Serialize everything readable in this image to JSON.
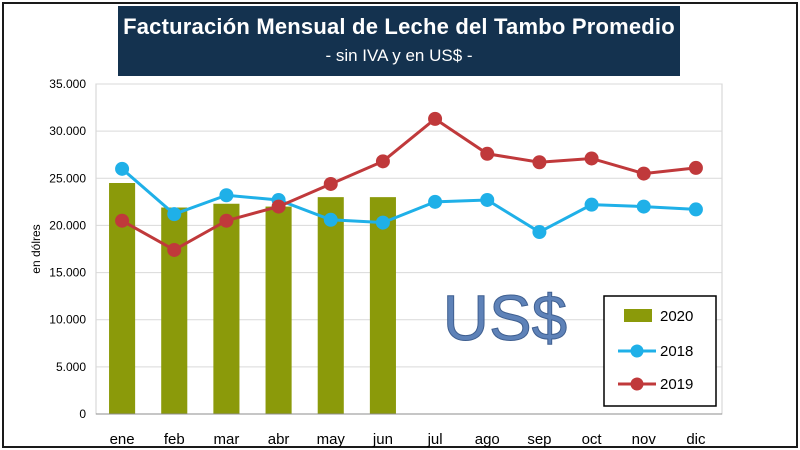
{
  "chart_data": {
    "type": "bar",
    "title": "Facturación Mensual de Leche del Tambo Promedio",
    "subtitle": "- sin IVA y en US$ -",
    "ylabel": "en dólres",
    "watermark": "US$",
    "ylim": [
      0,
      35000
    ],
    "yticks": [
      "0",
      "5.000",
      "10.000",
      "15.000",
      "20.000",
      "25.000",
      "30.000",
      "35.000"
    ],
    "categories": [
      "ene",
      "feb",
      "mar",
      "abr",
      "may",
      "jun",
      "jul",
      "ago",
      "sep",
      "oct",
      "nov",
      "dic"
    ],
    "bar_series": {
      "name": "2020",
      "color": "#8b9a0a",
      "values": [
        24500,
        21900,
        22300,
        22000,
        23000,
        23000
      ]
    },
    "line_series": [
      {
        "name": "2018",
        "color": "#1fb0e8",
        "values": [
          26000,
          21200,
          23200,
          22700,
          20600,
          20300,
          22500,
          22700,
          19300,
          22200,
          22000,
          21700
        ]
      },
      {
        "name": "2019",
        "color": "#c0393b",
        "values": [
          20500,
          17400,
          20500,
          22000,
          24400,
          26800,
          31300,
          27600,
          26700,
          27100,
          25500,
          26100
        ]
      }
    ],
    "grid": "horizontal",
    "legend_position": "bottom-right"
  }
}
